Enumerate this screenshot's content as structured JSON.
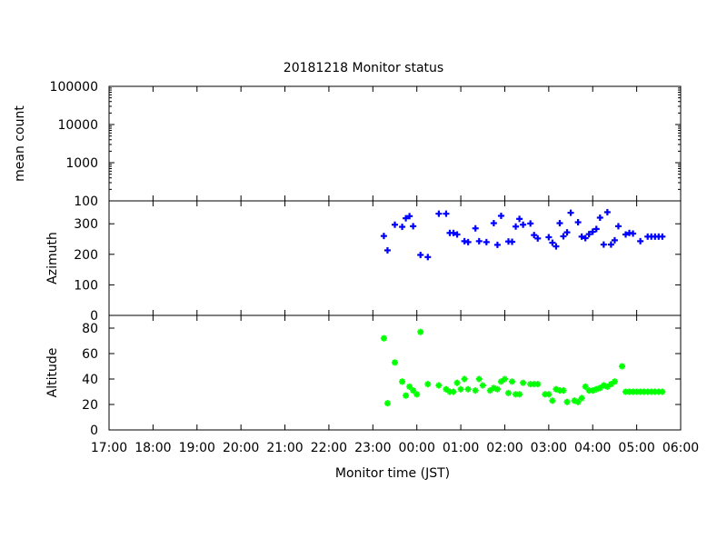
{
  "chart_data": {
    "title": "20181218 Monitor status",
    "xlabel": "Monitor time (JST)",
    "x_tick_labels": [
      "17:00",
      "18:00",
      "19:00",
      "20:00",
      "21:00",
      "22:00",
      "23:00",
      "00:00",
      "01:00",
      "02:00",
      "03:00",
      "04:00",
      "05:00",
      "06:00"
    ],
    "x_range": [
      "17:00",
      "06:00"
    ],
    "grid": false,
    "panels": [
      {
        "name": "mean-count",
        "type": "scatter",
        "ylabel": "mean count",
        "y_scale": "log",
        "ylim": [
          100,
          100000
        ],
        "y_tick_labels": [
          "100",
          "1000",
          "10000",
          "100000"
        ],
        "series": []
      },
      {
        "name": "azimuth",
        "type": "scatter",
        "ylabel": "Azimuth",
        "y_scale": "linear",
        "ylim": [
          0,
          375
        ],
        "y_tick_labels": [
          "0",
          "100",
          "200",
          "300"
        ],
        "series": [
          {
            "color": "#0000ff",
            "marker": "plus",
            "x": [
              "23:15",
              "23:20",
              "23:30",
              "23:40",
              "23:45",
              "23:50",
              "23:55",
              "00:05",
              "00:15",
              "00:30",
              "00:40",
              "00:45",
              "00:50",
              "00:55",
              "01:05",
              "01:10",
              "01:20",
              "01:25",
              "01:35",
              "01:45",
              "01:50",
              "01:55",
              "02:05",
              "02:10",
              "02:15",
              "02:20",
              "02:25",
              "02:35",
              "02:40",
              "02:45",
              "03:00",
              "03:05",
              "03:10",
              "03:15",
              "03:20",
              "03:25",
              "03:30",
              "03:40",
              "03:45",
              "03:50",
              "03:55",
              "04:00",
              "04:05",
              "04:10",
              "04:15",
              "04:20",
              "04:25",
              "04:30",
              "04:35",
              "04:45",
              "04:50",
              "04:55",
              "05:05",
              "05:15",
              "05:20",
              "05:25",
              "05:30",
              "05:35"
            ],
            "y": [
              260,
              213,
              297,
              290,
              318,
              325,
              292,
              198,
              191,
              333,
              333,
              270,
              270,
              265,
              243,
              240,
              285,
              243,
              240,
              302,
              231,
              326,
              242,
              241,
              291,
              316,
              297,
              301,
              263,
              252,
              256,
              238,
              226,
              302,
              259,
              272,
              336,
              305,
              258,
              253,
              266,
              274,
              283,
              320,
              232,
              338,
              232,
              246,
              292,
              265,
              270,
              268,
              243,
              258,
              258,
              258,
              258,
              258
            ],
            "note": ""
          }
        ]
      },
      {
        "name": "altitude",
        "type": "scatter",
        "ylabel": "Altitude",
        "y_scale": "linear",
        "ylim": [
          0,
          90
        ],
        "y_tick_labels": [
          "0",
          "20",
          "40",
          "60",
          "80"
        ],
        "series": [
          {
            "color": "#00ff00",
            "marker": "star",
            "x": [
              "23:15",
              "23:20",
              "23:30",
              "23:40",
              "23:45",
              "23:50",
              "23:55",
              "00:00",
              "00:05",
              "00:15",
              "00:30",
              "00:40",
              "00:45",
              "00:50",
              "00:55",
              "01:00",
              "01:05",
              "01:10",
              "01:20",
              "01:25",
              "01:30",
              "01:40",
              "01:45",
              "01:50",
              "01:55",
              "02:00",
              "02:05",
              "02:10",
              "02:15",
              "02:20",
              "02:25",
              "02:35",
              "02:40",
              "02:45",
              "02:55",
              "03:00",
              "03:05",
              "03:10",
              "03:15",
              "03:20",
              "03:25",
              "03:35",
              "03:40",
              "03:45",
              "03:50",
              "03:55",
              "04:00",
              "04:05",
              "04:10",
              "04:15",
              "04:20",
              "04:25",
              "04:30",
              "04:40",
              "04:45",
              "04:50",
              "04:55",
              "05:00",
              "05:05",
              "05:10",
              "05:15",
              "05:20",
              "05:25",
              "05:30",
              "05:35"
            ],
            "y": [
              72,
              21,
              53,
              38,
              27,
              34,
              31,
              28,
              77,
              36,
              35,
              32,
              30,
              30,
              37,
              32,
              40,
              32,
              31,
              40,
              35,
              31,
              33,
              32,
              38,
              40,
              29,
              38,
              28,
              28,
              37,
              36,
              36,
              36,
              28,
              28,
              23,
              32,
              31,
              31,
              22,
              23,
              22,
              25,
              34,
              31,
              31,
              32,
              33,
              35,
              34,
              36,
              38,
              50,
              30,
              30,
              30,
              30,
              30,
              30,
              30,
              30,
              30,
              30,
              30
            ]
          }
        ]
      }
    ]
  }
}
